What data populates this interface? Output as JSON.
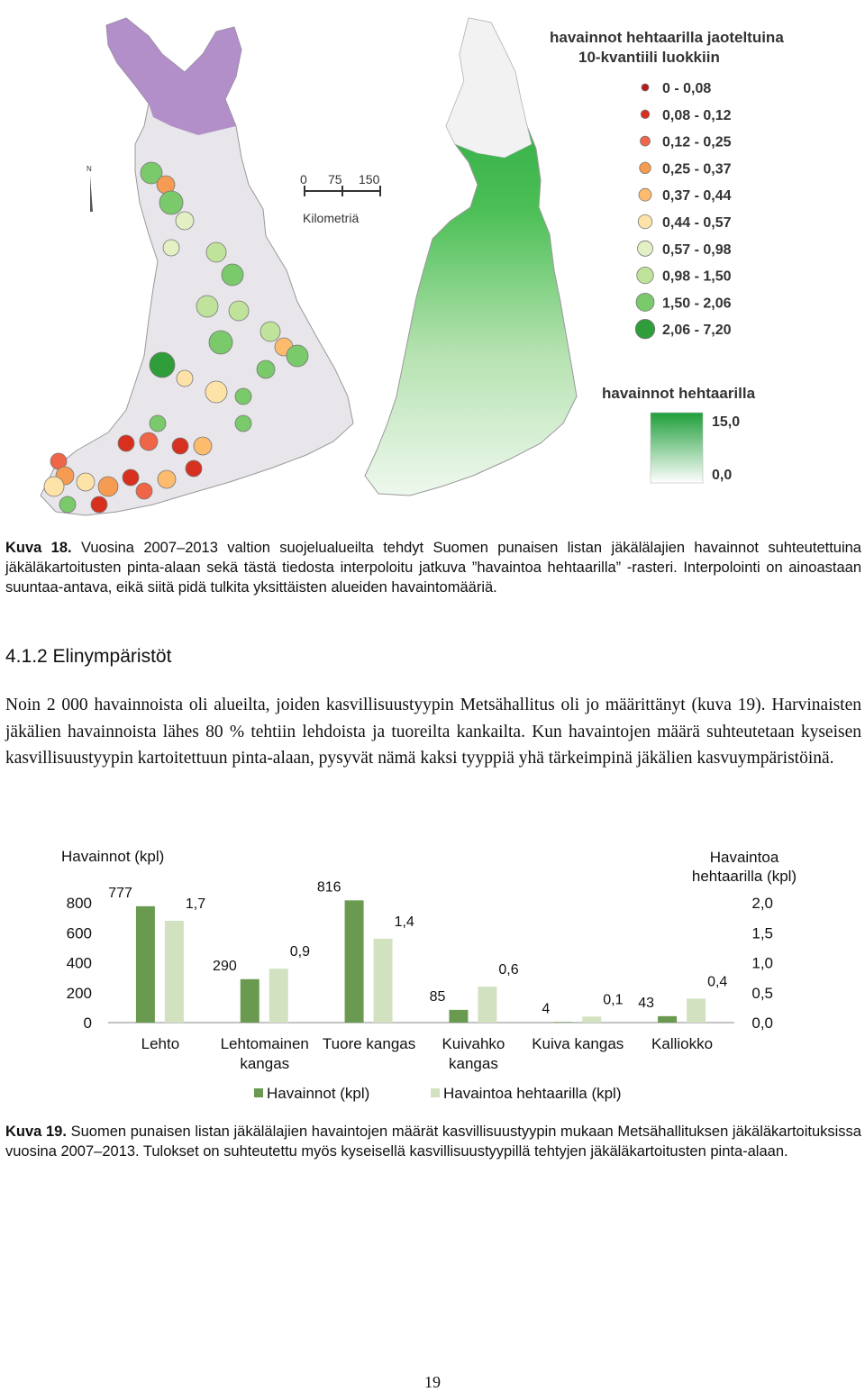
{
  "figure18": {
    "scale_bar": {
      "ticks": [
        "0",
        "75",
        "150"
      ],
      "unit": "Kilometriä"
    },
    "north_label": "N",
    "legend_points": {
      "title_line1": "havainnot hehtaarilla jaoteltuina",
      "title_line2": "10-kvantiili luokkiin",
      "classes": [
        {
          "label": "0 - 0,08",
          "color": "#b71c1c"
        },
        {
          "label": "0,08 - 0,12",
          "color": "#d7301f"
        },
        {
          "label": "0,12 - 0,25",
          "color": "#ef6548"
        },
        {
          "label": "0,25 - 0,37",
          "color": "#f59b52"
        },
        {
          "label": "0,37 - 0,44",
          "color": "#fdbb6e"
        },
        {
          "label": "0,44 - 0,57",
          "color": "#fde3a7"
        },
        {
          "label": "0,57 - 0,98",
          "color": "#e2f0c4"
        },
        {
          "label": "0,98 - 1,50",
          "color": "#bfe39a"
        },
        {
          "label": "1,50 - 2,06",
          "color": "#7ac96b"
        },
        {
          "label": "2,06 - 7,20",
          "color": "#2e9d3a"
        }
      ]
    },
    "legend_raster": {
      "title": "havainnot hehtaarilla",
      "max_label": "15,0",
      "min_label": "0,0"
    },
    "caption_label": "Kuva 18.",
    "caption_text": "Vuosina 2007–2013 valtion suojelualueilta tehdyt Suomen punaisen listan jäkälälajien havainnot suhteutettuina jäkäläkartoitusten pinta-alaan sekä tästä tiedosta interpoloitu jatkuva ”havaintoa hehtaarilla” -rasteri. Interpolointi on ainoastaan suuntaa-antava, eikä siitä pidä tulkita yksittäisten alueiden havaintomääriä."
  },
  "section": {
    "heading": "4.1.2 Elinympäristöt",
    "paragraph": "Noin 2 000 havainnoista oli alueilta, joiden kasvillisuustyypin Metsähallitus oli jo määrittänyt (kuva 19). Harvinaisten jäkälien havainnoista lähes 80 % tehtiin lehdoista ja tuoreilta kankailta. Kun havaintojen määrä suhteutetaan kyseisen kasvillisuustyypin kartoitettuun pinta-alaan, pysyvät nämä kaksi tyyppiä yhä tärkeimpinä jäkälien kasvuympäristöinä."
  },
  "chart_data": {
    "type": "bar",
    "ylabel_left": "Havainnot (kpl)",
    "ylabel_right_line1": "Havaintoa",
    "ylabel_right_line2": "hehtaarilla (kpl)",
    "ylim_left": [
      0,
      800
    ],
    "ylim_right": [
      0,
      2
    ],
    "left_ticks": [
      "0",
      "200",
      "400",
      "600",
      "800"
    ],
    "right_ticks": [
      "0,0",
      "0,5",
      "1,0",
      "1,5",
      "2,0"
    ],
    "categories": [
      {
        "line1": "Lehto",
        "line2": ""
      },
      {
        "line1": "Lehtomainen",
        "line2": "kangas"
      },
      {
        "line1": "Tuore kangas",
        "line2": ""
      },
      {
        "line1": "Kuivahko",
        "line2": "kangas"
      },
      {
        "line1": "Kuiva kangas",
        "line2": ""
      },
      {
        "line1": "Kalliokko",
        "line2": ""
      }
    ],
    "series": [
      {
        "name": "Havainnot (kpl)",
        "axis": "left",
        "color": "#6a9a4f",
        "values": [
          777,
          290,
          816,
          85,
          4,
          43
        ],
        "labels": [
          "777",
          "290",
          "816",
          "85",
          "4",
          "43"
        ]
      },
      {
        "name": "Havaintoa hehtaarilla (kpl)",
        "axis": "right",
        "color": "#d2e2c1",
        "values": [
          1.7,
          0.9,
          1.4,
          0.6,
          0.1,
          0.4
        ],
        "labels": [
          "1,7",
          "0,9",
          "1,4",
          "0,6",
          "0,1",
          "0,4"
        ]
      }
    ],
    "legend_position": "bottom",
    "grid": false
  },
  "figure19": {
    "caption_label": "Kuva 19.",
    "caption_text": "Suomen punaisen listan jäkälälajien havaintojen määrät kasvillisuustyypin mukaan Metsähallituksen jäkäläkartoituksissa vuosina 2007–2013. Tulokset on suhteutettu myös kyseisellä kasvillisuustyypillä tehtyjen jäkäläkartoitusten pinta-alaan."
  },
  "page_number": "19"
}
